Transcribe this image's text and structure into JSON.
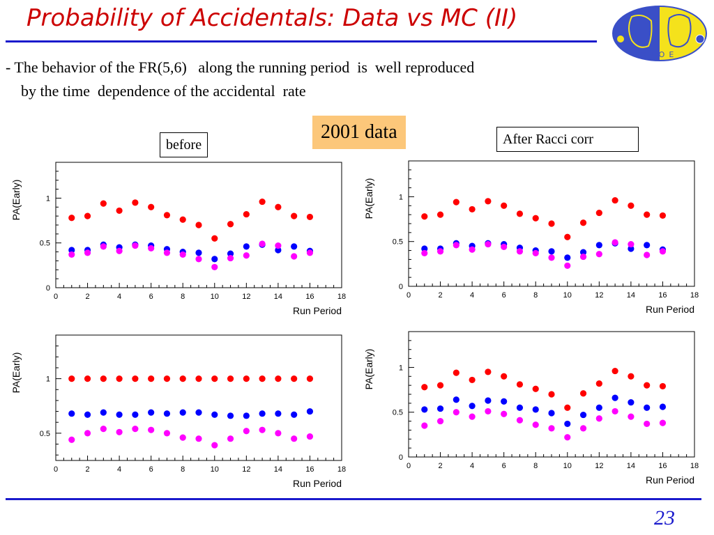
{
  "slide": {
    "title": "Probability of Accidentals: Data vs MC (II)",
    "bullet_line1": "- The behavior of the FR(5,6)   along the running period  is  well reproduced",
    "bullet_line2": "by the time  dependence of the accidental  rate",
    "label_before": "before",
    "label_after": "After Racci corr",
    "label_year": "2001 data",
    "page_number": "23",
    "logo_text": "KLOE",
    "colors": {
      "title": "#cc0000",
      "rule": "#1a1acc",
      "logo_blue": "#3a4fc7",
      "logo_yellow": "#f4e21c",
      "year_box": "#fcc77a",
      "red": "#ff0000",
      "blue": "#0000ff",
      "magenta": "#ff00ff"
    }
  },
  "chart_data": [
    {
      "type": "scatter",
      "panel": "top-left",
      "xlabel": "Run Period",
      "ylabel": "PA(Early)",
      "xlim": [
        0,
        18
      ],
      "ylim": [
        0,
        1.4
      ],
      "xticks": [
        0,
        2,
        4,
        6,
        8,
        10,
        12,
        14,
        16,
        18
      ],
      "yticks": [
        0,
        0.5,
        1
      ],
      "x": [
        1,
        2,
        3,
        4,
        5,
        6,
        7,
        8,
        9,
        10,
        11,
        12,
        13,
        14,
        15,
        16
      ],
      "series": [
        {
          "color": "red",
          "values": [
            0.78,
            0.8,
            0.94,
            0.86,
            0.95,
            0.9,
            0.81,
            0.76,
            0.7,
            0.55,
            0.71,
            0.82,
            0.96,
            0.9,
            0.8,
            0.79
          ]
        },
        {
          "color": "blue",
          "values": [
            0.42,
            0.42,
            0.48,
            0.45,
            0.48,
            0.47,
            0.43,
            0.4,
            0.39,
            0.32,
            0.38,
            0.46,
            0.48,
            0.42,
            0.46,
            0.41
          ]
        },
        {
          "color": "magenta",
          "values": [
            0.37,
            0.39,
            0.46,
            0.41,
            0.47,
            0.44,
            0.39,
            0.37,
            0.32,
            0.23,
            0.33,
            0.36,
            0.49,
            0.47,
            0.35,
            0.39
          ]
        }
      ]
    },
    {
      "type": "scatter",
      "panel": "top-right",
      "xlabel": "Run Period",
      "ylabel": "PA(Early)",
      "xlim": [
        0,
        18
      ],
      "ylim": [
        0,
        1.4
      ],
      "xticks": [
        0,
        2,
        4,
        6,
        8,
        10,
        12,
        14,
        16,
        18
      ],
      "yticks": [
        0,
        0.5,
        1
      ],
      "x": [
        1,
        2,
        3,
        4,
        5,
        6,
        7,
        8,
        9,
        10,
        11,
        12,
        13,
        14,
        15,
        16
      ],
      "series": [
        {
          "color": "red",
          "values": [
            0.78,
            0.8,
            0.94,
            0.86,
            0.95,
            0.9,
            0.81,
            0.76,
            0.7,
            0.55,
            0.71,
            0.82,
            0.96,
            0.9,
            0.8,
            0.79
          ]
        },
        {
          "color": "blue",
          "values": [
            0.42,
            0.42,
            0.48,
            0.45,
            0.48,
            0.47,
            0.43,
            0.4,
            0.39,
            0.32,
            0.38,
            0.46,
            0.48,
            0.42,
            0.46,
            0.41
          ]
        },
        {
          "color": "magenta",
          "values": [
            0.37,
            0.39,
            0.46,
            0.41,
            0.47,
            0.44,
            0.39,
            0.37,
            0.32,
            0.23,
            0.33,
            0.36,
            0.49,
            0.47,
            0.35,
            0.39
          ]
        }
      ]
    },
    {
      "type": "scatter",
      "panel": "bottom-left",
      "xlabel": "Run Period",
      "ylabel": "PA(Early)",
      "xlim": [
        0,
        18
      ],
      "ylim": [
        0.25,
        1.4
      ],
      "xticks": [
        0,
        2,
        4,
        6,
        8,
        10,
        12,
        14,
        16,
        18
      ],
      "yticks": [
        0.5,
        1
      ],
      "x": [
        1,
        2,
        3,
        4,
        5,
        6,
        7,
        8,
        9,
        10,
        11,
        12,
        13,
        14,
        15,
        16
      ],
      "series": [
        {
          "color": "red",
          "values": [
            1.0,
            1.0,
            1.0,
            1.0,
            1.0,
            1.0,
            1.0,
            1.0,
            1.0,
            1.0,
            1.0,
            1.0,
            1.0,
            1.0,
            1.0,
            1.0
          ]
        },
        {
          "color": "blue",
          "values": [
            0.68,
            0.67,
            0.69,
            0.67,
            0.67,
            0.69,
            0.68,
            0.69,
            0.69,
            0.67,
            0.66,
            0.66,
            0.68,
            0.68,
            0.67,
            0.7
          ]
        },
        {
          "color": "magenta",
          "values": [
            0.44,
            0.5,
            0.54,
            0.51,
            0.54,
            0.53,
            0.5,
            0.46,
            0.45,
            0.39,
            0.45,
            0.52,
            0.53,
            0.5,
            0.45,
            0.47
          ]
        }
      ]
    },
    {
      "type": "scatter",
      "panel": "bottom-right",
      "xlabel": "Run Period",
      "ylabel": "PA(Early)",
      "xlim": [
        0,
        18
      ],
      "ylim": [
        0,
        1.4
      ],
      "xticks": [
        0,
        2,
        4,
        6,
        8,
        10,
        12,
        14,
        16,
        18
      ],
      "yticks": [
        0,
        0.5,
        1
      ],
      "x": [
        1,
        2,
        3,
        4,
        5,
        6,
        7,
        8,
        9,
        10,
        11,
        12,
        13,
        14,
        15,
        16
      ],
      "series": [
        {
          "color": "red",
          "values": [
            0.78,
            0.8,
            0.94,
            0.86,
            0.95,
            0.9,
            0.81,
            0.76,
            0.7,
            0.55,
            0.71,
            0.82,
            0.96,
            0.9,
            0.8,
            0.79
          ]
        },
        {
          "color": "blue",
          "values": [
            0.53,
            0.54,
            0.64,
            0.57,
            0.63,
            0.62,
            0.55,
            0.53,
            0.49,
            0.37,
            0.47,
            0.55,
            0.66,
            0.61,
            0.55,
            0.56
          ]
        },
        {
          "color": "magenta",
          "values": [
            0.35,
            0.4,
            0.5,
            0.45,
            0.51,
            0.48,
            0.41,
            0.36,
            0.32,
            0.22,
            0.32,
            0.43,
            0.51,
            0.45,
            0.37,
            0.38
          ]
        }
      ]
    }
  ]
}
